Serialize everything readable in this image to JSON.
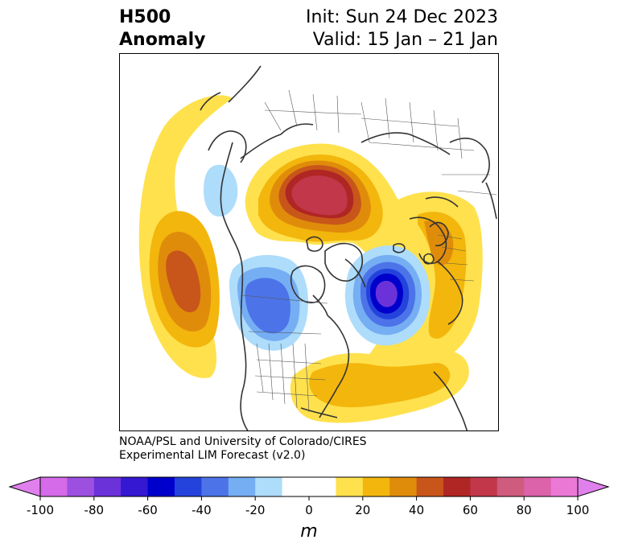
{
  "title": {
    "variable": "H500",
    "kind": "Anomaly",
    "init": "Init: Sun 24 Dec 2023",
    "valid": "Valid: 15 Jan – 21 Jan"
  },
  "credit": {
    "line1": "NOAA/PSL and University of Colorado/CIRES",
    "line2": "Experimental LIM Forecast (v2.0)"
  },
  "colorbar": {
    "unit": "m",
    "ticks": [
      "-100",
      "-80",
      "-60",
      "-40",
      "-20",
      "0",
      "20",
      "40",
      "60",
      "80",
      "100"
    ],
    "colors": [
      "#d56be8",
      "#9d50e0",
      "#6b32d9",
      "#3418d2",
      "#0000cc",
      "#2443dc",
      "#4c74e8",
      "#76aef3",
      "#aedcfb",
      "#ffffff",
      "#ffffff",
      "#ffe14d",
      "#f3b60c",
      "#e08c0b",
      "#c8561a",
      "#b02624",
      "#c2384a",
      "#cf5b7e",
      "#dc62aa",
      "#ec78d6"
    ],
    "under_color": "#e080ec",
    "over_color": "#e080ec"
  },
  "map_colors": {
    "land_line": "#333333",
    "border_line": "#555555"
  }
}
